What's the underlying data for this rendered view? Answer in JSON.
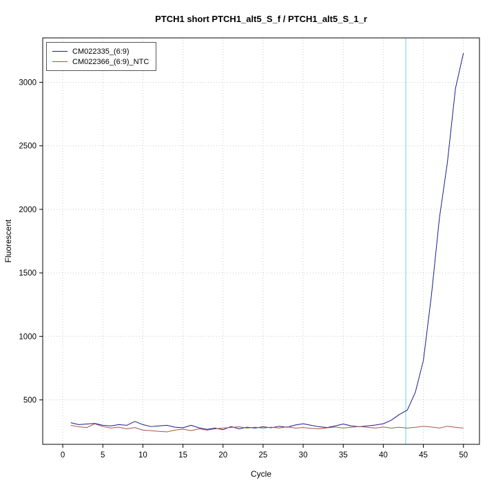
{
  "title": "PTCH1 short PTCH1_alt5_S_f / PTCH1_alt5_S_1_r",
  "chart_data": {
    "type": "line",
    "title": "PTCH1 short PTCH1_alt5_S_f / PTCH1_alt5_S_1_r",
    "xlabel": "Cycle",
    "ylabel": "Fluorescent",
    "xlim": [
      -2.5,
      52
    ],
    "ylim": [
      150,
      3350
    ],
    "xticks": [
      0,
      5,
      10,
      15,
      20,
      25,
      30,
      35,
      40,
      45,
      50
    ],
    "yticks": [
      500,
      1000,
      1500,
      2000,
      2500,
      3000
    ],
    "grid": true,
    "grid_color": "#c8c8c8",
    "threshold_line": {
      "x": 42.8,
      "color": "#7fdbe0"
    },
    "legend_position": "top-left",
    "x_start": 1,
    "x_step": 1,
    "series": [
      {
        "name": "CM022335_(6:9)",
        "color": "#1a1a8c",
        "values": [
          320,
          305,
          310,
          315,
          300,
          295,
          305,
          300,
          330,
          305,
          290,
          295,
          300,
          285,
          280,
          300,
          280,
          268,
          278,
          265,
          290,
          272,
          285,
          278,
          288,
          280,
          292,
          285,
          302,
          312,
          300,
          288,
          282,
          295,
          310,
          295,
          288,
          295,
          302,
          312,
          340,
          385,
          420,
          560,
          810,
          1320,
          1930,
          2370,
          2950,
          3230
        ]
      },
      {
        "name": "CM022366_(6:9)_NTC",
        "color": "#a8524a",
        "values": [
          300,
          288,
          282,
          312,
          290,
          278,
          285,
          272,
          282,
          262,
          258,
          252,
          248,
          262,
          270,
          258,
          272,
          262,
          272,
          278,
          282,
          288,
          278,
          285,
          278,
          285,
          278,
          288,
          278,
          282,
          276,
          272,
          280,
          286,
          278,
          284,
          290,
          284,
          278,
          286,
          278,
          284,
          278,
          284,
          292,
          286,
          278,
          292,
          284,
          278
        ]
      }
    ]
  },
  "legend": {
    "items": [
      {
        "label": "CM022335_(6:9)"
      },
      {
        "label": "CM022366_(6:9)_NTC"
      }
    ]
  }
}
